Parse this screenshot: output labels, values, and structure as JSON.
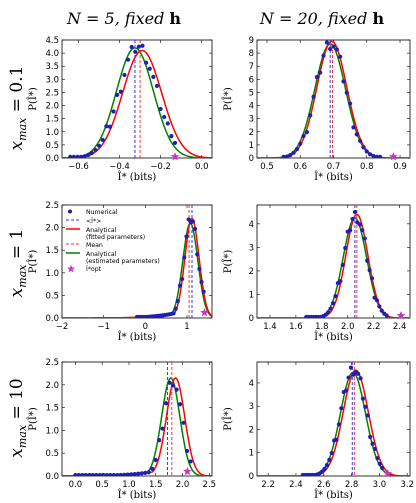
{
  "col_titles": [
    {
      "pre": "N = 5, fixed ",
      "bold": "h"
    },
    {
      "pre": "N = 20, fixed ",
      "bold": "h"
    }
  ],
  "row_titles": [
    {
      "main": "x",
      "sub": "max",
      "rest": " = 0.1"
    },
    {
      "main": "x",
      "sub": "max",
      "rest": " = 1"
    },
    {
      "main": "x",
      "sub": "max",
      "rest": " = 10"
    }
  ],
  "legend": {
    "position": "upper-left",
    "entries": [
      {
        "label": "Numerical",
        "style": "dots",
        "color": "#1f1fb3"
      },
      {
        "label": "<Î*>",
        "style": "dashed",
        "color": "#3333ff"
      },
      {
        "label": "Analytical\n(fitted parameters)",
        "style": "solid",
        "color": "#ff0000"
      },
      {
        "label": "Mean",
        "style": "dashed",
        "color": "#ff3333"
      },
      {
        "label": "Analytical\n(estimated parameters)",
        "style": "solid",
        "color": "#008000"
      },
      {
        "label": "Î*opt",
        "style": "star",
        "color": "#cc33cc"
      }
    ]
  },
  "colors": {
    "numerical": "#1f1fb3",
    "fitted": "#ff0000",
    "estimated": "#008000",
    "mean_line": "#ff3333",
    "avg_line": "#3333ff",
    "opt_star": "#cc33cc"
  },
  "chart_data": [
    {
      "type": "scatter",
      "xlabel": "Î* (bits)",
      "ylabel": "P(Î*)",
      "xlim": [
        -0.68,
        0.05
      ],
      "ylim": [
        0,
        4.5
      ],
      "xticks": [
        -0.6,
        -0.4,
        -0.2,
        0.0
      ],
      "xtick_labels": [
        "−0.6",
        "−0.4",
        "−0.2",
        "0.0"
      ],
      "yticks": [
        0,
        0.5,
        1,
        1.5,
        2,
        2.5,
        3,
        3.5,
        4,
        4.5
      ],
      "ytick_labels": [
        "0.0",
        "0.5",
        "1.0",
        "1.5",
        "2.0",
        "2.5",
        "3.0",
        "3.5",
        "4.0",
        "4.5"
      ],
      "fitted": {
        "mu": -0.29,
        "sigma": 0.095,
        "amp": 4.1
      },
      "estimated": {
        "mu": -0.325,
        "sigma": 0.09,
        "amp": 4.2
      },
      "numerical": {
        "mu": -0.31,
        "sigma": 0.09,
        "amp": 4.25,
        "x_start": -0.64,
        "x_end": -0.13,
        "n": 30
      },
      "mean_line": -0.3,
      "avg_line": -0.325,
      "opt_star": {
        "x": -0.13,
        "y": 0.05
      }
    },
    {
      "type": "scatter",
      "xlabel": "Î* (bits)",
      "ylabel": "P(Î*)",
      "xlim": [
        0.47,
        0.93
      ],
      "ylim": [
        0,
        9
      ],
      "xticks": [
        0.5,
        0.6,
        0.7,
        0.8,
        0.9
      ],
      "xtick_labels": [
        "0.5",
        "0.6",
        "0.7",
        "0.8",
        "0.9"
      ],
      "yticks": [
        0,
        1,
        2,
        3,
        4,
        5,
        6,
        7,
        8,
        9
      ],
      "ytick_labels": [
        "0",
        "1",
        "2",
        "3",
        "4",
        "5",
        "6",
        "7",
        "8",
        "9"
      ],
      "fitted": {
        "mu": 0.695,
        "sigma": 0.045,
        "amp": 8.9
      },
      "estimated": {
        "mu": 0.69,
        "sigma": 0.046,
        "amp": 8.7
      },
      "numerical": {
        "mu": 0.692,
        "sigma": 0.045,
        "amp": 8.8,
        "x_start": 0.55,
        "x_end": 0.84,
        "n": 30
      },
      "mean_line": 0.697,
      "avg_line": 0.69,
      "opt_star": {
        "x": 0.88,
        "y": 0.1
      }
    },
    {
      "type": "scatter",
      "xlabel": "Î* (bits)",
      "ylabel": "P(Î*)",
      "xlim": [
        -2,
        1.6
      ],
      "ylim": [
        0,
        2.5
      ],
      "xticks": [
        -2,
        -1,
        0,
        1
      ],
      "xtick_labels": [
        "−2",
        "−1",
        "0",
        "1"
      ],
      "yticks": [
        0,
        0.5,
        1,
        1.5,
        2,
        2.5
      ],
      "ytick_labels": [
        "0.0",
        "0.5",
        "1.0",
        "1.5",
        "2.0",
        "2.5"
      ],
      "fitted": {
        "mu": 1.12,
        "sigma": 0.17,
        "amp": 2.2,
        "left_tail": 0.45
      },
      "estimated": {
        "mu": 1.08,
        "sigma": 0.18,
        "amp": 2.1,
        "left_tail": 0.45
      },
      "numerical": {
        "mu": 1.1,
        "sigma": 0.17,
        "amp": 2.2,
        "left_tail": 0.45,
        "x_start": -0.2,
        "x_end": 1.4,
        "n": 32
      },
      "mean_line": 1.05,
      "avg_line": 1.12,
      "opt_star": {
        "x": 1.42,
        "y": 0.12
      }
    },
    {
      "type": "scatter",
      "xlabel": "Î* (bits)",
      "ylabel": "P(Î*)",
      "xlim": [
        1.3,
        2.48
      ],
      "ylim": [
        0,
        4.8
      ],
      "xticks": [
        1.4,
        1.6,
        1.8,
        2.0,
        2.2,
        2.4
      ],
      "xtick_labels": [
        "1.4",
        "1.6",
        "1.8",
        "2.0",
        "2.2",
        "2.4"
      ],
      "yticks": [
        0,
        1,
        2,
        3,
        4
      ],
      "ytick_labels": [
        "0",
        "1",
        "2",
        "3",
        "4"
      ],
      "fitted": {
        "mu": 2.07,
        "sigma": 0.085,
        "amp": 4.4
      },
      "estimated": {
        "mu": 2.055,
        "sigma": 0.09,
        "amp": 4.25
      },
      "numerical": {
        "mu": 2.06,
        "sigma": 0.088,
        "amp": 4.35,
        "x_start": 1.68,
        "x_end": 2.3,
        "n": 34
      },
      "mean_line": 2.07,
      "avg_line": 2.055,
      "opt_star": {
        "x": 2.41,
        "y": 0.1
      }
    },
    {
      "type": "scatter",
      "xlabel": "Î* (bits)",
      "ylabel": "P(Î*)",
      "xlim": [
        -0.25,
        2.55
      ],
      "ylim": [
        0,
        2.5
      ],
      "xticks": [
        0.0,
        0.5,
        1.0,
        1.5,
        2.0,
        2.5
      ],
      "xtick_labels": [
        "0.0",
        "0.5",
        "1.0",
        "1.5",
        "2.0",
        "2.5"
      ],
      "yticks": [
        0,
        0.5,
        1,
        1.5,
        2,
        2.5
      ],
      "ytick_labels": [
        "0.0",
        "0.5",
        "1.0",
        "1.5",
        "2.0",
        "2.5"
      ],
      "fitted": {
        "mu": 1.87,
        "sigma": 0.17,
        "amp": 2.15,
        "left_tail": 0.4
      },
      "estimated": {
        "mu": 1.78,
        "sigma": 0.17,
        "amp": 2.15,
        "left_tail": 0.4
      },
      "numerical": {
        "mu": 1.82,
        "sigma": 0.17,
        "amp": 2.1,
        "left_tail": 0.4,
        "x_start": 0.0,
        "x_end": 2.15,
        "n": 34
      },
      "mean_line": 1.8,
      "avg_line": 1.72,
      "opt_star": {
        "x": 2.09,
        "y": 0.1
      }
    },
    {
      "type": "scatter",
      "xlabel": "Î* (bits)",
      "ylabel": "P(Î*)",
      "xlim": [
        2.12,
        3.22
      ],
      "ylim": [
        0,
        4.9
      ],
      "xticks": [
        2.2,
        2.4,
        2.6,
        2.8,
        3.0,
        3.2
      ],
      "xtick_labels": [
        "2.2",
        "2.4",
        "2.6",
        "2.8",
        "3.0",
        "3.2"
      ],
      "yticks": [
        0,
        1,
        2,
        3,
        4
      ],
      "ytick_labels": [
        "0",
        "1",
        "2",
        "3",
        "4"
      ],
      "fitted": {
        "mu": 2.83,
        "sigma": 0.09,
        "amp": 4.55
      },
      "estimated": {
        "mu": 2.81,
        "sigma": 0.09,
        "amp": 4.45
      },
      "numerical": {
        "mu": 2.815,
        "sigma": 0.09,
        "amp": 4.6,
        "x_start": 2.45,
        "x_end": 3.02,
        "n": 34
      },
      "mean_line": 2.82,
      "avg_line": 2.805,
      "opt_star": {
        "x": 3.06,
        "y": 0.1
      }
    }
  ]
}
